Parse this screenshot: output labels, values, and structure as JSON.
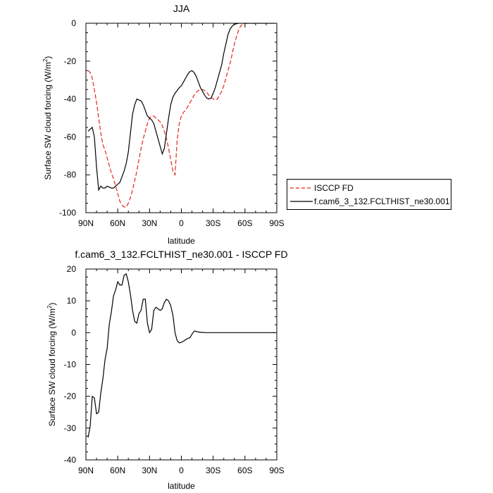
{
  "chart_data": [
    {
      "type": "line",
      "title": "JJA",
      "xlabel": "latitude",
      "ylabel": "Surface SW cloud forcing (W/m",
      "ylabel_sup": "2",
      "ylabel_close": ")",
      "xlim": [
        90,
        -90
      ],
      "ylim": [
        -100,
        0
      ],
      "x_ticks": [
        90,
        60,
        30,
        0,
        -30,
        -60,
        -90
      ],
      "x_tick_labels": [
        "90N",
        "60N",
        "30N",
        "0",
        "30S",
        "60S",
        "90S"
      ],
      "y_ticks": [
        -100,
        -80,
        -60,
        -40,
        -20,
        0
      ],
      "y_tick_labels": [
        "-100",
        "-80",
        "-60",
        "-40",
        "-20",
        "0"
      ],
      "legend_position": "right",
      "series": [
        {
          "name": "ISCCP FD",
          "color": "#e8231c",
          "dash": "dashed",
          "x": [
            88,
            86,
            84,
            82,
            80,
            78,
            76,
            74,
            72,
            70,
            68,
            66,
            64,
            62,
            60,
            58,
            56,
            54,
            52,
            50,
            48,
            46,
            44,
            42,
            40,
            38,
            36,
            34,
            32,
            30,
            28,
            26,
            24,
            22,
            20,
            18,
            16,
            14,
            12,
            10,
            8,
            6,
            4,
            2,
            0,
            -2,
            -4,
            -6,
            -8,
            -10,
            -12,
            -14,
            -16,
            -18,
            -20,
            -22,
            -24,
            -26,
            -28,
            -30,
            -32,
            -34,
            -36,
            -38,
            -40,
            -42,
            -44,
            -46,
            -48,
            -50,
            -52,
            -54,
            -56,
            -58,
            -60,
            -62,
            -64,
            -66,
            -68,
            -70,
            -72,
            -74,
            -76,
            -78,
            -80,
            -82,
            -84,
            -86,
            -88
          ],
          "y": [
            -25,
            -26,
            -29,
            -35,
            -42,
            -50,
            -58,
            -64,
            -67,
            -71,
            -75,
            -79,
            -82,
            -86,
            -90,
            -94,
            -96,
            -97,
            -97,
            -95,
            -92,
            -88,
            -83,
            -78,
            -72,
            -66,
            -61,
            -57,
            -53,
            -50,
            -49,
            -49,
            -50,
            -51,
            -52,
            -54,
            -57,
            -61,
            -66,
            -72,
            -78,
            -80,
            -62,
            -53,
            -49,
            -47,
            -46,
            -44,
            -42,
            -40,
            -38,
            -36.5,
            -35.5,
            -35,
            -35,
            -35.5,
            -36.5,
            -38,
            -39,
            -40,
            -40.5,
            -40,
            -38,
            -36,
            -33,
            -29,
            -25,
            -21,
            -16,
            -11,
            -7,
            -3.5,
            -1.5,
            -0.5,
            -0.2,
            0,
            0,
            0,
            0,
            0,
            0,
            0,
            0,
            0,
            0,
            0,
            0,
            0,
            0
          ]
        },
        {
          "name": "f.cam6_3_132.FCLTHIST_ne30.001",
          "color": "#000000",
          "dash": "solid",
          "x": [
            88,
            86,
            84,
            82,
            80,
            78,
            76,
            74,
            72,
            70,
            68,
            66,
            64,
            62,
            60,
            58,
            56,
            54,
            52,
            50,
            48,
            46,
            44,
            42,
            40,
            38,
            36,
            34,
            32,
            30,
            28,
            26,
            24,
            22,
            20,
            18,
            16,
            14,
            12,
            10,
            8,
            6,
            4,
            2,
            0,
            -2,
            -4,
            -6,
            -8,
            -10,
            -12,
            -14,
            -16,
            -18,
            -20,
            -22,
            -24,
            -26,
            -28,
            -30,
            -32,
            -34,
            -36,
            -38,
            -40,
            -42,
            -44,
            -46,
            -48,
            -50,
            -52,
            -54,
            -56,
            -58,
            -60,
            -62,
            -64,
            -66,
            -68,
            -70,
            -72,
            -74,
            -76,
            -78,
            -80,
            -82,
            -84,
            -86,
            -88
          ],
          "y": [
            -57,
            -56,
            -55,
            -60,
            -76,
            -88,
            -86,
            -87,
            -87,
            -86,
            -86.5,
            -87,
            -87,
            -86,
            -85,
            -84,
            -81,
            -78,
            -74,
            -68,
            -58,
            -48,
            -43,
            -40,
            -40.5,
            -41,
            -43,
            -46,
            -49,
            -50,
            -51,
            -53,
            -57,
            -61,
            -65,
            -69,
            -66,
            -58,
            -50,
            -43,
            -39,
            -37,
            -35.5,
            -34,
            -33,
            -31,
            -29,
            -27,
            -25.5,
            -25,
            -26,
            -28,
            -31,
            -34,
            -36,
            -38,
            -39.5,
            -40,
            -39.5,
            -37,
            -34,
            -30,
            -26,
            -22,
            -16,
            -11,
            -6,
            -3,
            -1.5,
            -0.5,
            -0.3,
            0,
            0,
            0,
            0,
            0,
            0,
            0,
            0,
            0,
            0,
            0,
            0,
            0,
            0,
            0,
            0,
            0,
            0
          ]
        }
      ]
    },
    {
      "type": "line",
      "title": "f.cam6_3_132.FCLTHIST_ne30.001 - ISCCP FD",
      "xlabel": "latitude",
      "ylabel": "Surface SW cloud forcing (W/m",
      "ylabel_sup": "2",
      "ylabel_close": ")",
      "xlim": [
        90,
        -90
      ],
      "ylim": [
        -40,
        20
      ],
      "x_ticks": [
        90,
        60,
        30,
        0,
        -30,
        -60,
        -90
      ],
      "x_tick_labels": [
        "90N",
        "60N",
        "30N",
        "0",
        "30S",
        "60S",
        "90S"
      ],
      "y_ticks": [
        -40,
        -30,
        -20,
        -10,
        0,
        10,
        20
      ],
      "y_tick_labels": [
        "-40",
        "-30",
        "-20",
        "-10",
        "0",
        "10",
        "20"
      ],
      "series": [
        {
          "color": "#000000",
          "dash": "solid",
          "x": [
            88,
            86,
            84,
            82,
            80,
            78,
            76,
            74,
            72,
            70,
            68,
            66,
            64,
            62,
            60,
            58,
            56,
            54,
            52,
            50,
            48,
            46,
            44,
            42,
            40,
            38,
            36,
            34,
            32,
            30,
            28,
            26,
            24,
            22,
            20,
            18,
            16,
            14,
            12,
            10,
            8,
            6,
            4,
            2,
            0,
            -2,
            -4,
            -6,
            -8,
            -10,
            -12,
            -14,
            -16,
            -18,
            -20,
            -22,
            -24,
            -26,
            -28,
            -30,
            -32,
            -34,
            -36,
            -38,
            -40,
            -42,
            -44,
            -46,
            -48,
            -50,
            -52,
            -54,
            -56,
            -58,
            -60,
            -62,
            -64,
            -66,
            -68,
            -70,
            -72,
            -74,
            -76,
            -78,
            -80,
            -82,
            -84,
            -86,
            -88
          ],
          "y": [
            -33,
            -29.5,
            -20,
            -20.5,
            -25.5,
            -25,
            -19,
            -14.5,
            -8.5,
            -5,
            2.5,
            6.5,
            11.5,
            13.5,
            16,
            15,
            15,
            18,
            18.5,
            16,
            12,
            7,
            3.5,
            3,
            6,
            7,
            10.5,
            10.5,
            3,
            0,
            1,
            7,
            8,
            7.5,
            7,
            7.5,
            9.5,
            10.5,
            10,
            8.5,
            5.5,
            0,
            -2.5,
            -3.2,
            -3,
            -2.7,
            -2.2,
            -1.8,
            -1.6,
            -0.5,
            0.5,
            0.4,
            0.2,
            0.1,
            0.1,
            0,
            0,
            0,
            0,
            0,
            0,
            0,
            0,
            0,
            0,
            0,
            0,
            0,
            0,
            0,
            0,
            0,
            0,
            0,
            0,
            0,
            0,
            0,
            0,
            0,
            0,
            0,
            0,
            0,
            0,
            0,
            0,
            0,
            0
          ]
        }
      ]
    }
  ]
}
